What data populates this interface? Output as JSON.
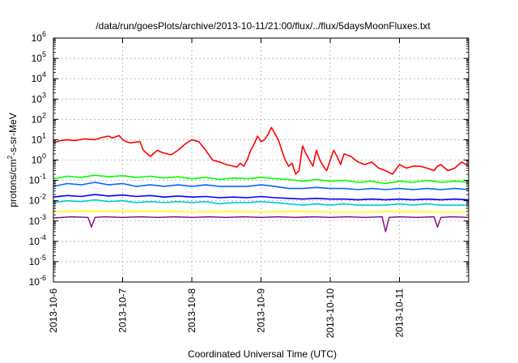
{
  "chart_data": {
    "type": "line",
    "title": "/data/run/goesPlots/archive/2013-10-11/21:00/flux/../flux/5daysMoonFluxes.txt",
    "xlabel": "Coordinated Universal Time (UTC)",
    "ylabel": {
      "base": "protons/cm",
      "exp": "2",
      "rest": "-s-sr-MeV"
    },
    "x_ticks": [
      "2013-10-6",
      "2013-10-7",
      "2013-10-8",
      "2013-10-9",
      "2013-10-10",
      "2013-10-11"
    ],
    "xlim": [
      0,
      6
    ],
    "y_scale": "log",
    "ylim": [
      -6,
      6
    ],
    "y_ticks": [
      {
        "base": "10",
        "exp": "-6"
      },
      {
        "base": "10",
        "exp": "-5"
      },
      {
        "base": "10",
        "exp": "-4"
      },
      {
        "base": "10",
        "exp": "-3"
      },
      {
        "base": "10",
        "exp": "-2"
      },
      {
        "base": "10",
        "exp": "-1"
      },
      {
        "base": "10",
        "exp": "0"
      },
      {
        "base": "10",
        "exp": "1"
      },
      {
        "base": "10",
        "exp": "2"
      },
      {
        "base": "10",
        "exp": "3"
      },
      {
        "base": "10",
        "exp": "4"
      },
      {
        "base": "10",
        "exp": "5"
      },
      {
        "base": "10",
        "exp": "6"
      }
    ],
    "grid": true,
    "series": [
      {
        "color": "#ff0000",
        "width": 1.6,
        "x": [
          0,
          0.1,
          0.2,
          0.3,
          0.45,
          0.6,
          0.7,
          0.8,
          0.85,
          0.95,
          1.0,
          1.05,
          1.1,
          1.25,
          1.3,
          1.4,
          1.5,
          1.55,
          1.6,
          1.7,
          1.8,
          1.9,
          2.0,
          2.1,
          2.2,
          2.3,
          2.4,
          2.5,
          2.6,
          2.65,
          2.7,
          2.75,
          2.8,
          2.85,
          2.9,
          2.95,
          3.0,
          3.05,
          3.1,
          3.15,
          3.2,
          3.25,
          3.3,
          3.35,
          3.4,
          3.45,
          3.5,
          3.55,
          3.6,
          3.65,
          3.7,
          3.75,
          3.8,
          3.85,
          3.9,
          3.95,
          4.0,
          4.05,
          4.1,
          4.15,
          4.2,
          4.3,
          4.4,
          4.5,
          4.6,
          4.7,
          4.8,
          4.9,
          5.0,
          5.1,
          5.2,
          5.3,
          5.4,
          5.5,
          5.55,
          5.6,
          5.7,
          5.8,
          5.9,
          6.0
        ],
        "y": [
          7,
          9,
          10,
          9,
          11,
          10,
          13,
          15,
          12,
          16,
          10,
          8,
          7,
          8,
          3,
          1.5,
          3,
          2.5,
          2.2,
          1.8,
          3,
          6,
          10,
          8,
          3,
          1,
          0.8,
          0.6,
          0.5,
          0.45,
          0.7,
          0.5,
          1,
          3,
          6,
          15,
          8,
          10,
          18,
          40,
          20,
          10,
          3,
          1,
          0.5,
          0.7,
          0.2,
          0.3,
          5,
          2,
          1,
          0.5,
          3,
          1,
          0.5,
          0.3,
          1,
          3,
          1.5,
          0.6,
          2,
          1.5,
          0.8,
          0.6,
          0.8,
          0.4,
          0.3,
          0.2,
          0.6,
          0.4,
          0.5,
          0.5,
          0.4,
          0.3,
          0.5,
          0.6,
          0.3,
          0.4,
          0.8,
          0.5
        ]
      },
      {
        "color": "#00ff00",
        "width": 1.6,
        "x": [
          0,
          0.2,
          0.4,
          0.6,
          0.8,
          1.0,
          1.2,
          1.4,
          1.6,
          1.8,
          2.0,
          2.2,
          2.4,
          2.6,
          2.8,
          3.0,
          3.2,
          3.4,
          3.6,
          3.8,
          4.0,
          4.2,
          4.4,
          4.6,
          4.8,
          5.0,
          5.2,
          5.4,
          5.6,
          5.8,
          6.0
        ],
        "y": [
          0.12,
          0.16,
          0.14,
          0.18,
          0.15,
          0.17,
          0.14,
          0.16,
          0.13,
          0.15,
          0.12,
          0.14,
          0.11,
          0.13,
          0.12,
          0.14,
          0.12,
          0.11,
          0.09,
          0.11,
          0.09,
          0.1,
          0.08,
          0.09,
          0.07,
          0.09,
          0.08,
          0.1,
          0.08,
          0.09,
          0.08
        ]
      },
      {
        "color": "#0066ff",
        "width": 1.6,
        "x": [
          0,
          0.2,
          0.4,
          0.6,
          0.8,
          1.0,
          1.2,
          1.4,
          1.6,
          1.8,
          2.0,
          2.2,
          2.4,
          2.6,
          2.8,
          3.0,
          3.2,
          3.4,
          3.6,
          3.8,
          4.0,
          4.2,
          4.4,
          4.6,
          4.8,
          5.0,
          5.2,
          5.4,
          5.6,
          5.8,
          6.0
        ],
        "y": [
          0.05,
          0.07,
          0.06,
          0.08,
          0.06,
          0.07,
          0.05,
          0.06,
          0.05,
          0.06,
          0.05,
          0.06,
          0.05,
          0.05,
          0.05,
          0.06,
          0.05,
          0.04,
          0.04,
          0.045,
          0.04,
          0.04,
          0.035,
          0.04,
          0.035,
          0.04,
          0.035,
          0.04,
          0.035,
          0.04,
          0.035
        ]
      },
      {
        "color": "#0000ff",
        "width": 1.6,
        "x": [
          0,
          0.2,
          0.4,
          0.6,
          0.8,
          1.0,
          1.2,
          1.4,
          1.6,
          1.8,
          2.0,
          2.2,
          2.4,
          2.6,
          2.8,
          3.0,
          3.2,
          3.4,
          3.6,
          3.8,
          4.0,
          4.2,
          4.4,
          4.6,
          4.8,
          5.0,
          5.2,
          5.4,
          5.6,
          5.8,
          6.0
        ],
        "y": [
          0.015,
          0.018,
          0.016,
          0.02,
          0.017,
          0.019,
          0.016,
          0.018,
          0.015,
          0.017,
          0.015,
          0.016,
          0.014,
          0.015,
          0.014,
          0.016,
          0.014,
          0.013,
          0.012,
          0.013,
          0.012,
          0.012,
          0.011,
          0.012,
          0.011,
          0.012,
          0.011,
          0.012,
          0.011,
          0.012,
          0.011
        ]
      },
      {
        "color": "#00cccc",
        "width": 1.6,
        "x": [
          0,
          0.2,
          0.4,
          0.6,
          0.8,
          1.0,
          1.2,
          1.4,
          1.6,
          1.8,
          2.0,
          2.2,
          2.4,
          2.6,
          2.8,
          3.0,
          3.2,
          3.4,
          3.6,
          3.8,
          4.0,
          4.2,
          4.4,
          4.6,
          4.8,
          5.0,
          5.2,
          5.4,
          5.6,
          5.8,
          6.0
        ],
        "y": [
          0.008,
          0.01,
          0.009,
          0.011,
          0.009,
          0.01,
          0.008,
          0.009,
          0.008,
          0.009,
          0.008,
          0.009,
          0.007,
          0.008,
          0.008,
          0.009,
          0.008,
          0.007,
          0.006,
          0.007,
          0.006,
          0.007,
          0.006,
          0.006,
          0.006,
          0.007,
          0.006,
          0.007,
          0.006,
          0.006,
          0.006
        ]
      },
      {
        "color": "#ffff00",
        "width": 1.6,
        "x": [
          0,
          0.5,
          1.0,
          1.5,
          2.0,
          2.5,
          3.0,
          3.5,
          4.0,
          4.5,
          5.0,
          5.5,
          6.0
        ],
        "y": [
          0.0028,
          0.003,
          0.0029,
          0.003,
          0.0028,
          0.0029,
          0.0028,
          0.0029,
          0.0028,
          0.0028,
          0.0029,
          0.0028,
          0.0028
        ]
      },
      {
        "color": "#800080",
        "width": 1.4,
        "x": [
          0,
          0.25,
          0.5,
          0.55,
          0.6,
          0.75,
          1.0,
          1.25,
          1.5,
          1.75,
          2.0,
          2.25,
          2.5,
          2.75,
          3.0,
          3.25,
          3.5,
          3.75,
          4.0,
          4.25,
          4.5,
          4.75,
          4.8,
          4.85,
          5.0,
          5.25,
          5.5,
          5.55,
          5.6,
          5.75,
          6.0
        ],
        "y": [
          0.0014,
          0.0016,
          0.0015,
          0.0005,
          0.0015,
          0.0016,
          0.0015,
          0.0016,
          0.0015,
          0.0016,
          0.0015,
          0.0016,
          0.0015,
          0.0016,
          0.0015,
          0.0016,
          0.0015,
          0.0016,
          0.0015,
          0.0016,
          0.0015,
          0.0016,
          0.0003,
          0.0015,
          0.0016,
          0.0015,
          0.0016,
          0.0005,
          0.0015,
          0.0016,
          0.0015
        ]
      }
    ]
  }
}
